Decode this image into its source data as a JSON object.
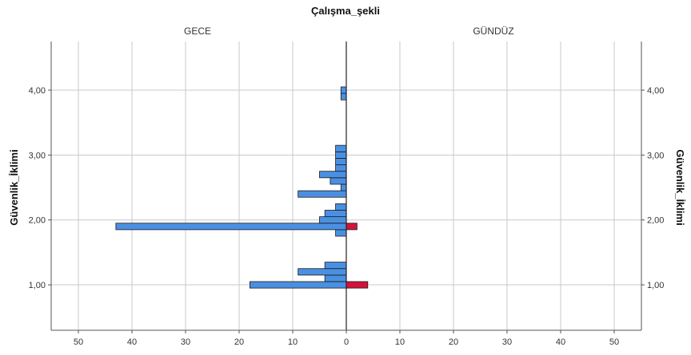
{
  "chart_data": {
    "type": "bar",
    "orientation": "horizontal-back-to-back",
    "title": "Çalışma_şekli",
    "ylabel": "Güvenlik_İklimi",
    "y_ticks": [
      "1,00",
      "2,00",
      "3,00",
      "4,00"
    ],
    "y_tick_values": [
      1.0,
      2.0,
      3.0,
      4.0
    ],
    "ylim": [
      0.3,
      4.75
    ],
    "panels": [
      {
        "name": "GECE",
        "direction": "left",
        "x_ticks": [
          "50",
          "40",
          "30",
          "20",
          "10",
          "0"
        ],
        "x_tick_values": [
          50,
          40,
          30,
          20,
          10,
          0
        ],
        "xlim": [
          0,
          55
        ]
      },
      {
        "name": "GÜNDÜZ",
        "direction": "right",
        "x_ticks": [
          "0",
          "10",
          "20",
          "30",
          "40",
          "50"
        ],
        "x_tick_values": [
          0,
          10,
          20,
          30,
          40,
          50
        ],
        "xlim": [
          0,
          55
        ]
      }
    ],
    "bin_width": 0.1,
    "series": [
      {
        "panel": "GECE",
        "color": "#4a90e2",
        "bars": [
          {
            "y": 1.0,
            "value": 18
          },
          {
            "y": 1.1,
            "value": 4
          },
          {
            "y": 1.2,
            "value": 9
          },
          {
            "y": 1.3,
            "value": 4
          },
          {
            "y": 1.8,
            "value": 2
          },
          {
            "y": 1.9,
            "value": 43
          },
          {
            "y": 2.0,
            "value": 5
          },
          {
            "y": 2.1,
            "value": 4
          },
          {
            "y": 2.2,
            "value": 2
          },
          {
            "y": 2.4,
            "value": 9
          },
          {
            "y": 2.5,
            "value": 1
          },
          {
            "y": 2.6,
            "value": 3
          },
          {
            "y": 2.7,
            "value": 5
          },
          {
            "y": 2.8,
            "value": 2
          },
          {
            "y": 2.9,
            "value": 2
          },
          {
            "y": 3.0,
            "value": 2
          },
          {
            "y": 3.1,
            "value": 2
          },
          {
            "y": 3.9,
            "value": 1
          },
          {
            "y": 4.0,
            "value": 1
          }
        ]
      },
      {
        "panel": "GÜNDÜZ",
        "color": "#d2143c",
        "bars": [
          {
            "y": 1.0,
            "value": 4
          },
          {
            "y": 1.9,
            "value": 2
          }
        ]
      }
    ],
    "grid": true,
    "colors": {
      "left_bars": "#4a90e2",
      "right_bars": "#d2143c",
      "grid": "#c8c8c8",
      "frame": "#555555"
    }
  }
}
